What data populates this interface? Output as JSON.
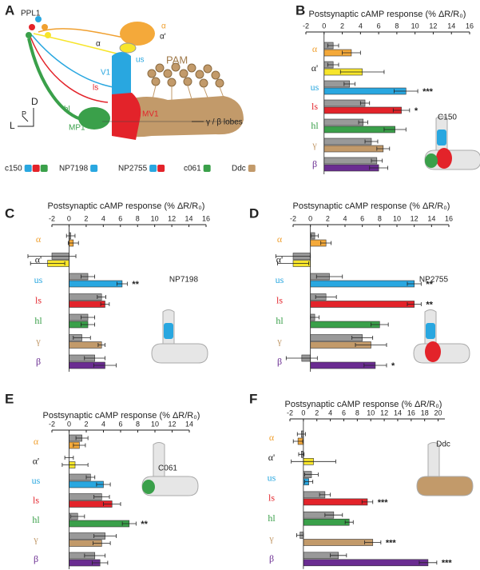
{
  "panel_a": {
    "letter": "A",
    "labels": {
      "ppl1": "PPL1",
      "alpha": "α",
      "alpha_prime": "α'",
      "alpha_left": "α",
      "us": "us",
      "v1": "V1",
      "pam": "PAM",
      "ls": "ls",
      "mv1": "MV1",
      "hl": "hl",
      "mp1": "MP1",
      "lobes": "γ / β lobes",
      "d": "D",
      "p": "P",
      "l": "L"
    },
    "legend": [
      {
        "label": "c150",
        "colors": [
          "#29a7e0",
          "#e3232a",
          "#3aa04a"
        ]
      },
      {
        "label": "NP7198",
        "colors": [
          "#29a7e0"
        ]
      },
      {
        "label": "NP2755",
        "colors": [
          "#29a7e0",
          "#e3232a"
        ]
      },
      {
        "label": "c061",
        "colors": [
          "#3aa04a"
        ]
      },
      {
        "label": "Ddc",
        "colors": [
          "#c29a6a"
        ]
      }
    ]
  },
  "chart_data": [
    {
      "type": "bar",
      "panel": "B",
      "title": "Postsynaptic cAMP response (% ΔR/R₀)",
      "inset_label": "C150",
      "categories": [
        "α",
        "α'",
        "us",
        "ls",
        "hl",
        "γ",
        "β"
      ],
      "category_colors": [
        "#f0a030",
        "#222222",
        "#29a7e0",
        "#e3232a",
        "#3aa04a",
        "#c29a6a",
        "#6a2c91"
      ],
      "xlim": [
        -2,
        16
      ],
      "xticks": [
        -2,
        0,
        2,
        4,
        6,
        8,
        10,
        12,
        14,
        16
      ],
      "series": [
        {
          "color": "#999999",
          "values": [
            1,
            1,
            2.8,
            4.5,
            4.3,
            5.2,
            5.8
          ],
          "errors": [
            0.6,
            0.6,
            0.6,
            0.5,
            0.5,
            0.7,
            0.6
          ]
        },
        {
          "colors": [
            "#f4a93a",
            "#f7e52b",
            "#29a7e0",
            "#e3232a",
            "#3aa04a",
            "#c29a6a",
            "#6a2c91"
          ],
          "values": [
            3,
            4.2,
            9,
            8.5,
            7.8,
            6.5,
            6
          ],
          "errors": [
            1,
            2.4,
            1.3,
            0.9,
            1.2,
            0.7,
            1
          ]
        }
      ],
      "annotations": [
        null,
        null,
        "***",
        "*",
        null,
        null,
        null
      ]
    },
    {
      "type": "bar",
      "panel": "C",
      "title": "Postsynaptic cAMP response (% ΔR/R₀)",
      "inset_label": "NP7198",
      "categories": [
        "α",
        "α'",
        "us",
        "ls",
        "hl",
        "γ",
        "β"
      ],
      "category_colors": [
        "#f0a030",
        "#222222",
        "#29a7e0",
        "#e3232a",
        "#3aa04a",
        "#c29a6a",
        "#6a2c91"
      ],
      "xlim": [
        -2,
        16
      ],
      "xticks": [
        -2,
        0,
        2,
        4,
        6,
        8,
        10,
        12,
        14,
        16
      ],
      "series": [
        {
          "color": "#999999",
          "values": [
            0.2,
            -2,
            2.2,
            3.8,
            2.2,
            1.5,
            3
          ],
          "errors": [
            0.5,
            2.8,
            0.8,
            0.5,
            0.8,
            1,
            1.2
          ]
        },
        {
          "colors": [
            "#f4a93a",
            "#f7e52b",
            "#29a7e0",
            "#e3232a",
            "#3aa04a",
            "#c29a6a",
            "#6a2c91"
          ],
          "values": [
            0.5,
            -2.5,
            6.2,
            4.2,
            2.2,
            3.8,
            4.2
          ],
          "errors": [
            0.6,
            2,
            0.6,
            0.5,
            0.8,
            0.4,
            1.3
          ]
        }
      ],
      "annotations": [
        null,
        null,
        "**",
        null,
        null,
        null,
        null
      ]
    },
    {
      "type": "bar",
      "panel": "D",
      "title": "Postsynaptic cAMP response (% ΔR/R₀)",
      "inset_label": "NP2755",
      "categories": [
        "α",
        "α'",
        "us",
        "ls",
        "hl",
        "γ",
        "β"
      ],
      "category_colors": [
        "#f0a030",
        "#222222",
        "#29a7e0",
        "#e3232a",
        "#3aa04a",
        "#c29a6a",
        "#6a2c91"
      ],
      "xlim": [
        -2,
        16
      ],
      "xticks": [
        -2,
        0,
        2,
        4,
        6,
        8,
        10,
        12,
        14,
        16
      ],
      "series": [
        {
          "color": "#999999",
          "values": [
            0.5,
            -2,
            2.2,
            1.8,
            0.5,
            6,
            -1
          ],
          "errors": [
            0.4,
            2,
            1.5,
            1.2,
            0.5,
            1.2,
            1.8
          ]
        },
        {
          "colors": [
            "#f4a93a",
            "#f7e52b",
            "#29a7e0",
            "#e3232a",
            "#3aa04a",
            "#c29a6a",
            "#6a2c91"
          ],
          "values": [
            1.8,
            -2,
            12,
            12,
            8,
            7,
            7.5
          ],
          "errors": [
            0.6,
            1.8,
            0.8,
            0.8,
            1,
            1.8,
            1.3
          ]
        }
      ],
      "annotations": [
        null,
        null,
        "**",
        "**",
        null,
        null,
        "*"
      ]
    },
    {
      "type": "bar",
      "panel": "E",
      "title": "Postsynaptic cAMP response (% ΔR/R₀)",
      "inset_label": "C061",
      "categories": [
        "α",
        "α'",
        "us",
        "ls",
        "hl",
        "γ",
        "β"
      ],
      "category_colors": [
        "#f0a030",
        "#222222",
        "#29a7e0",
        "#e3232a",
        "#3aa04a",
        "#c29a6a",
        "#6a2c91"
      ],
      "xlim": [
        -2,
        14
      ],
      "xticks": [
        -2,
        0,
        2,
        4,
        6,
        8,
        10,
        12,
        14
      ],
      "series": [
        {
          "color": "#999999",
          "values": [
            1.5,
            0,
            2.5,
            3.8,
            1,
            4.2,
            3
          ],
          "errors": [
            0.7,
            0.5,
            0.5,
            0.9,
            0.8,
            1.3,
            1.2
          ]
        },
        {
          "colors": [
            "#f4a93a",
            "#f7e52b",
            "#29a7e0",
            "#e3232a",
            "#3aa04a",
            "#c29a6a",
            "#6a2c91"
          ],
          "values": [
            1.2,
            0.7,
            4,
            5,
            7,
            3.8,
            3.6
          ],
          "errors": [
            0.7,
            1.5,
            0.8,
            1,
            0.8,
            1,
            0.9
          ]
        }
      ],
      "annotations": [
        null,
        null,
        null,
        null,
        "**",
        null,
        null
      ]
    },
    {
      "type": "bar",
      "panel": "F",
      "title": "Postsynaptic cAMP response (% ΔR/R₀)",
      "inset_label": "Ddc",
      "categories": [
        "α",
        "α'",
        "us",
        "ls",
        "hl",
        "γ",
        "β"
      ],
      "category_colors": [
        "#f0a030",
        "#222222",
        "#29a7e0",
        "#e3232a",
        "#3aa04a",
        "#c29a6a",
        "#6a2c91"
      ],
      "xlim": [
        -2,
        21
      ],
      "xticks": [
        -2,
        0,
        2,
        4,
        6,
        8,
        10,
        12,
        14,
        16,
        18,
        20
      ],
      "series": [
        {
          "color": "#999999",
          "values": [
            -0.3,
            -0.3,
            1.2,
            3.2,
            4.5,
            -0.5,
            5.2
          ],
          "errors": [
            0.6,
            0.4,
            1,
            0.8,
            1.3,
            0.5,
            1.2
          ]
        },
        {
          "colors": [
            "#f4a93a",
            "#f7e52b",
            "#29a7e0",
            "#e3232a",
            "#3aa04a",
            "#c29a6a",
            "#6a2c91"
          ],
          "values": [
            -0.8,
            1.5,
            0.8,
            9.5,
            6.8,
            10.3,
            18.5
          ],
          "errors": [
            0.7,
            3.3,
            0.6,
            0.8,
            0.6,
            1.2,
            1.3
          ]
        }
      ],
      "annotations": [
        null,
        null,
        null,
        "***",
        null,
        "***",
        "***"
      ]
    }
  ]
}
